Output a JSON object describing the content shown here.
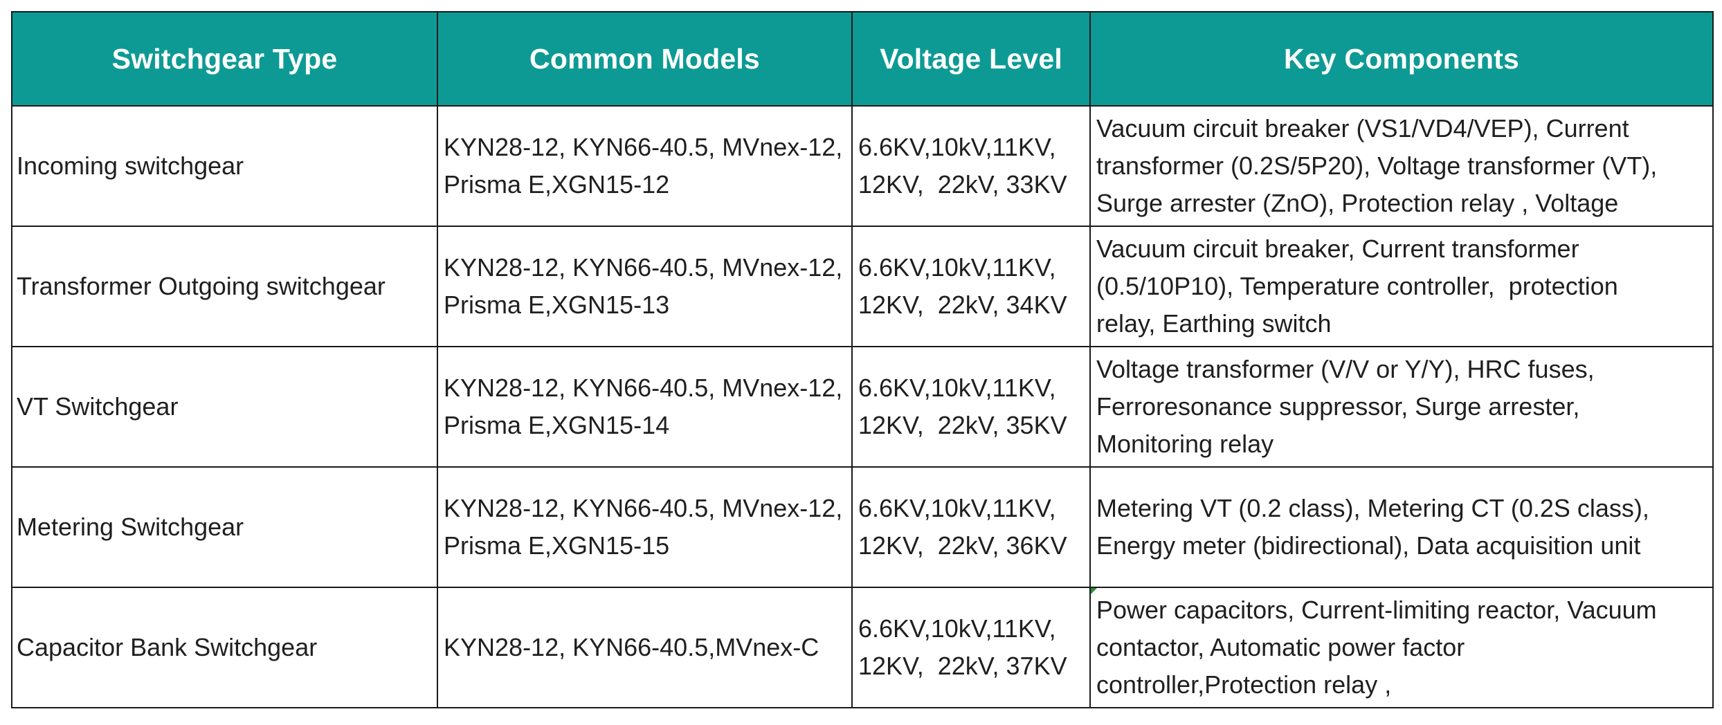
{
  "header": {
    "type": "Switchgear Type",
    "models": "Common Models",
    "voltage": "Voltage Level",
    "components": "Key Components"
  },
  "rows": [
    {
      "type": "Incoming switchgear",
      "models": [
        "KYN28-12, KYN66-40.5, MVnex-12,",
        "Prisma E,XGN15-12"
      ],
      "voltage": [
        "6.6KV,10kV,11KV,",
        "12KV,  22kV, 33KV"
      ],
      "components": [
        "Vacuum circuit breaker (VS1/VD4/VEP), Current",
        "transformer (0.2S/5P20), Voltage transformer (VT),",
        "Surge arrester (ZnO), Protection relay , Voltage"
      ]
    },
    {
      "type": "Transformer Outgoing switchgear",
      "models": [
        "KYN28-12, KYN66-40.5, MVnex-12,",
        "Prisma E,XGN15-13"
      ],
      "voltage": [
        "6.6KV,10kV,11KV,",
        "12KV,  22kV, 34KV"
      ],
      "components": [
        "Vacuum circuit breaker, Current transformer",
        "(0.5/10P10), Temperature controller,  protection",
        "relay, Earthing switch"
      ]
    },
    {
      "type": "VT Switchgear",
      "models": [
        "KYN28-12, KYN66-40.5, MVnex-12,",
        "Prisma E,XGN15-14"
      ],
      "voltage": [
        "6.6KV,10kV,11KV,",
        "12KV,  22kV, 35KV"
      ],
      "components": [
        "Voltage transformer (V/V or Y/Y), HRC fuses,",
        "Ferroresonance suppressor, Surge arrester,",
        "Monitoring relay"
      ]
    },
    {
      "type": "Metering Switchgear",
      "models": [
        "KYN28-12, KYN66-40.5, MVnex-12,",
        "Prisma E,XGN15-15"
      ],
      "voltage": [
        "6.6KV,10kV,11KV,",
        "12KV,  22kV, 36KV"
      ],
      "components": [
        "Metering VT (0.2 class), Metering CT (0.2S class),",
        "Energy meter (bidirectional), Data acquisition unit"
      ]
    },
    {
      "type": "Capacitor Bank Switchgear",
      "models": [
        "KYN28-12, KYN66-40.5,MVnex-C"
      ],
      "voltage": [
        "6.6KV,10kV,11KV,",
        "12KV,  22kV, 37KV"
      ],
      "components": [
        "Power capacitors, Current-limiting reactor, Vacuum",
        "contactor, Automatic power factor",
        "controller,Protection relay ,"
      ]
    }
  ],
  "colors": {
    "header_bg": "#0e9a94",
    "header_text": "#ffffff",
    "border": "#1a1a1a",
    "cell_text": "#1f1f1f",
    "comment_marker": "#2e8b3a"
  }
}
